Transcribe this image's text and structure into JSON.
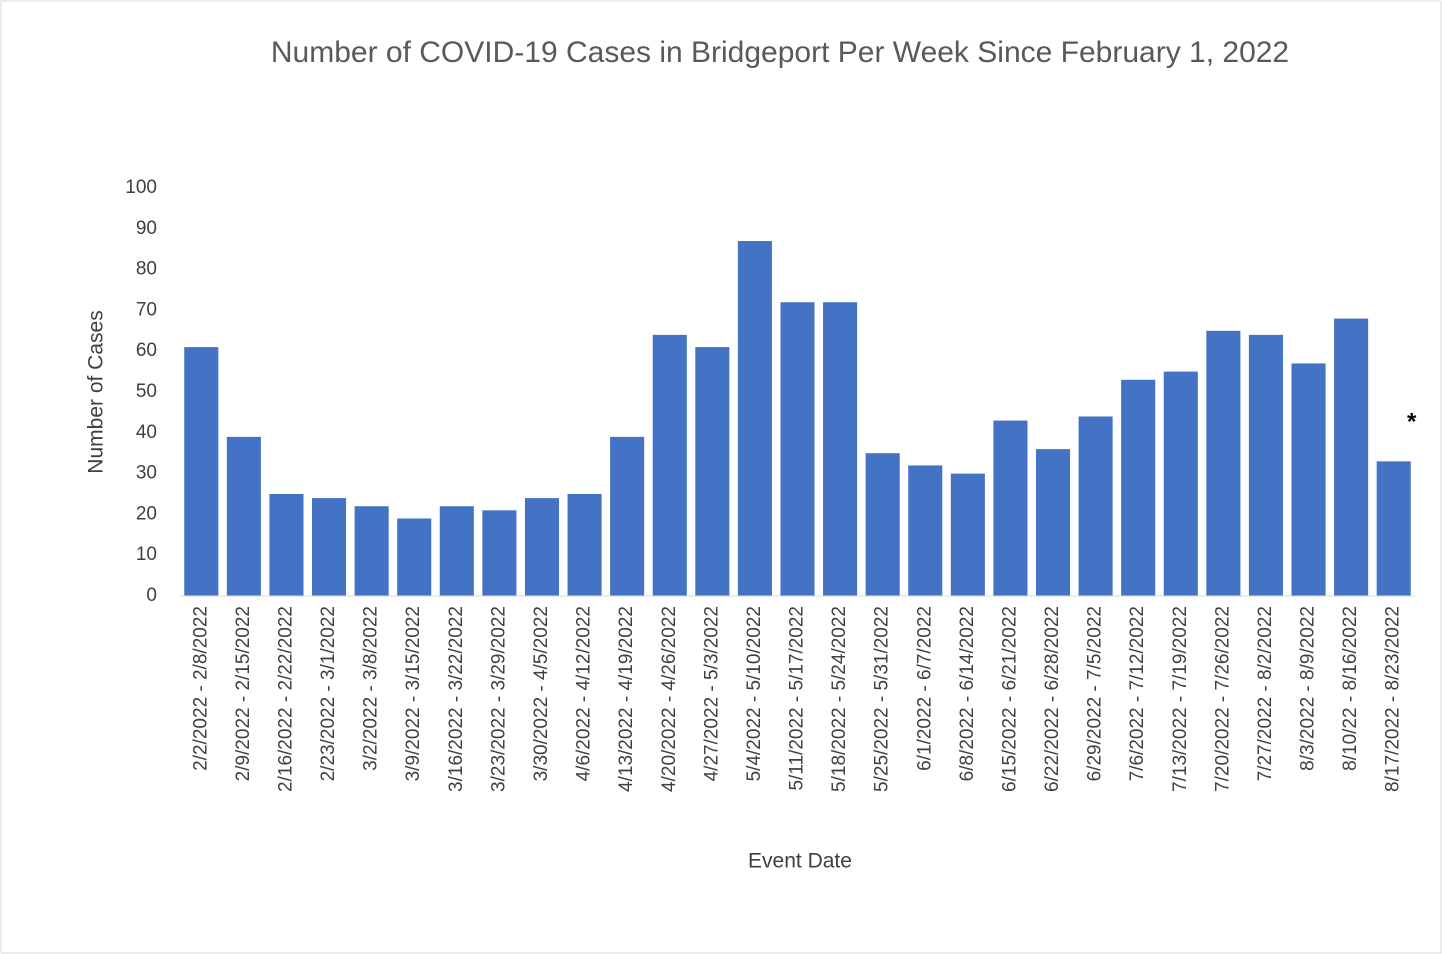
{
  "chart_data": {
    "type": "bar",
    "title": "Number of COVID-19 Cases in Bridgeport Per Week Since February 1, 2022",
    "x_label": "Event Date",
    "y_label": "Number of Cases",
    "annotation": "*",
    "categories": [
      "2/2/2022 - 2/8/2022",
      "2/9/2022 - 2/15/2022",
      "2/16/2022 - 2/22/2022",
      "2/23/2022 - 3/1/2022",
      "3/2/2022 - 3/8/2022",
      "3/9/2022 - 3/15/2022",
      "3/16/2022 - 3/22/2022",
      "3/23/2022 - 3/29/2022",
      "3/30/2022 - 4/5/2022",
      "4/6/2022 - 4/12/2022",
      "4/13/2022 - 4/19/2022",
      "4/20/2022 - 4/26/2022",
      "4/27/2022 - 5/3/2022",
      "5/4/2022 - 5/10/2022",
      "5/11/2022 - 5/17/2022",
      "5/18/2022 - 5/24/2022",
      "5/25/2022 - 5/31/2022",
      "6/1/2022 - 6/7/2022",
      "6/8/2022 - 6/14/2022",
      "6/15/2022 - 6/21/2022",
      "6/22/2022 - 6/28/2022",
      "6/29/2022 - 7/5/2022",
      "7/6/2022 - 7/12/2022",
      "7/13/2022 - 7/19/2022",
      "7/20/2022 - 7/26/2022",
      "7/27/2022 - 8/2/2022",
      "8/3/2022 - 8/9/2022",
      "8/10/22 - 8/16/2022",
      "8/17/2022 - 8/23/2022"
    ],
    "values": [
      61,
      39,
      25,
      24,
      22,
      19,
      22,
      21,
      24,
      25,
      39,
      64,
      61,
      87,
      72,
      72,
      35,
      32,
      30,
      43,
      36,
      44,
      53,
      55,
      65,
      64,
      57,
      68,
      33
    ],
    "color": "#4472c4",
    "ylim": [
      0,
      100
    ],
    "yticks": [
      0,
      10,
      20,
      30,
      40,
      50,
      60,
      70,
      80,
      90,
      100
    ],
    "grid": false
  }
}
